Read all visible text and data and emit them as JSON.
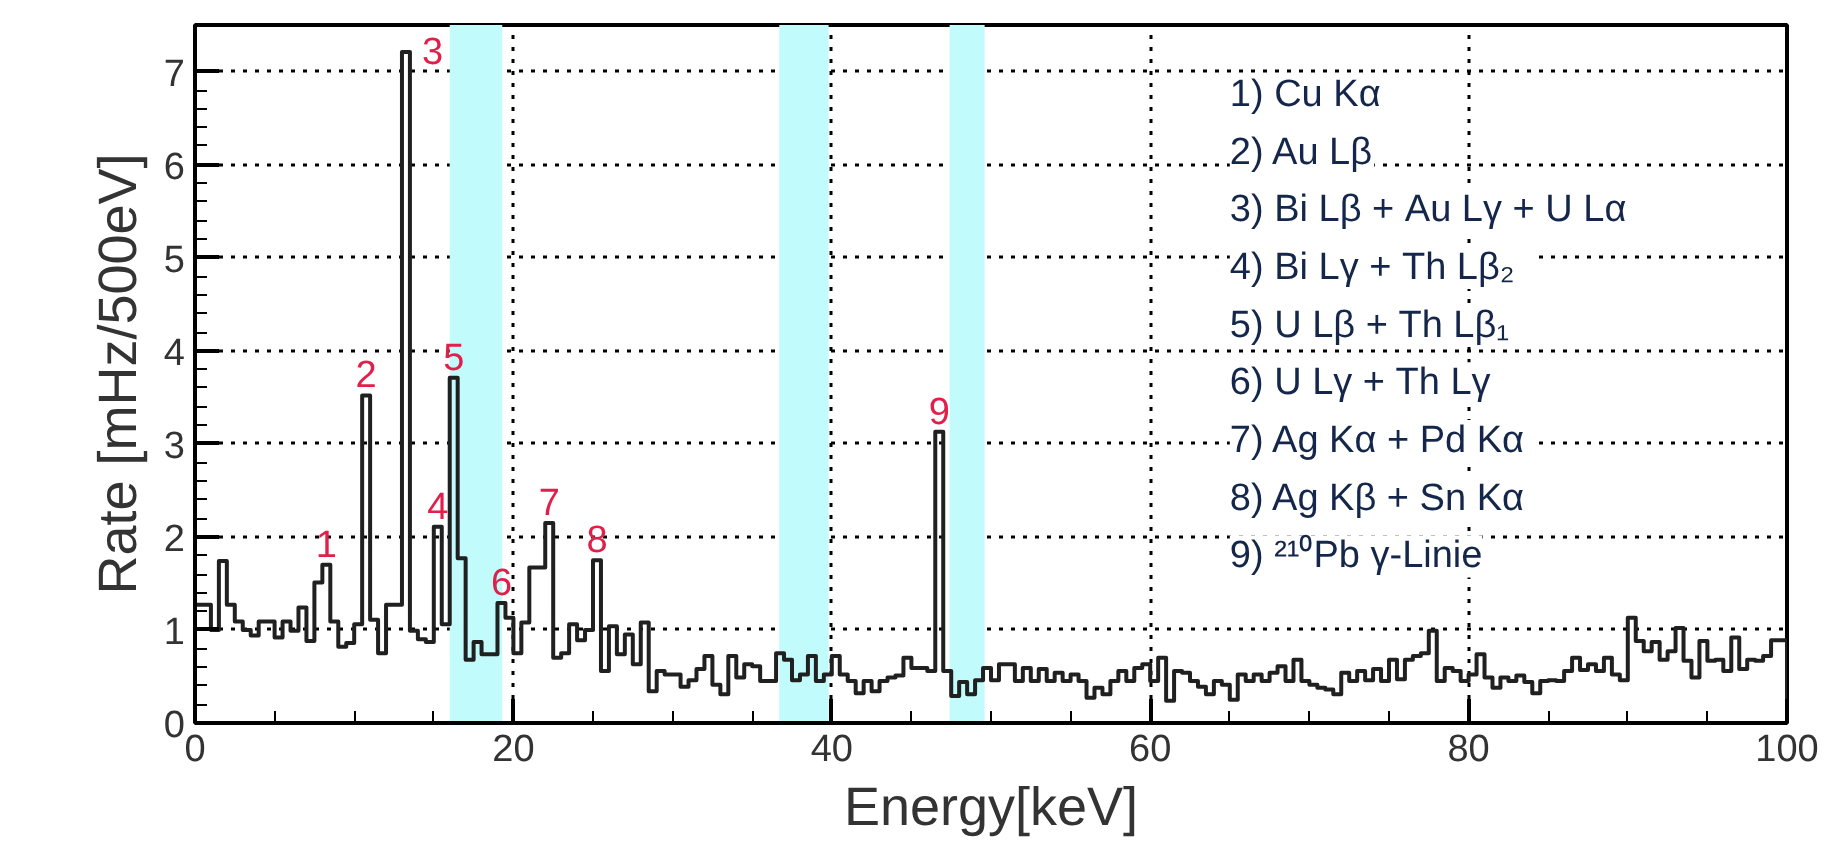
{
  "chart_data": {
    "type": "histogram",
    "xlabel": "Energy[keV]",
    "ylabel": "Rate [mHz/500eV]",
    "bins": [
      0,
      0.5,
      1,
      1.5,
      2,
      2.5,
      3,
      3.5,
      4,
      4.5,
      5,
      5.5,
      6,
      6.5,
      7,
      7.5,
      8,
      8.5,
      9,
      9.5,
      10,
      10.5,
      11,
      11.5,
      12,
      12.5,
      13,
      13.5,
      14,
      14.5,
      15,
      15.5,
      16,
      16.5,
      17,
      17.5,
      18,
      18.5,
      19,
      19.5,
      20,
      20.5,
      21,
      21.5,
      22,
      22.5,
      23,
      23.5,
      24,
      24.5,
      25,
      25.5,
      26,
      26.5,
      27,
      27.5,
      28,
      28.5,
      29,
      29.5,
      30,
      30.5,
      31,
      31.5,
      32,
      32.5,
      33,
      33.5,
      34,
      34.5,
      35,
      35.5,
      36,
      36.5,
      37,
      37.5,
      38,
      38.5,
      39,
      39.5,
      40,
      40.5,
      41,
      41.5,
      42,
      42.5,
      43,
      43.5,
      44,
      44.5,
      45,
      45.5,
      46,
      46.5,
      47,
      47.5,
      48,
      48.5,
      49,
      49.5,
      50,
      50.5,
      51,
      51.5,
      52,
      52.5,
      53,
      53.5,
      54,
      54.5,
      55,
      55.5,
      56,
      56.5,
      57,
      57.5,
      58,
      58.5,
      59,
      59.5,
      60,
      60.5,
      61,
      61.5,
      62,
      62.5,
      63,
      63.5,
      64,
      64.5,
      65,
      65.5,
      66,
      66.5,
      67,
      67.5,
      68,
      68.5,
      69,
      69.5,
      70,
      70.5,
      71,
      71.5,
      72,
      72.5,
      73,
      73.5,
      74,
      74.5,
      75,
      75.5,
      76,
      76.5,
      77,
      77.5,
      78,
      78.5,
      79,
      79.5,
      80,
      80.5,
      81,
      81.5,
      82,
      82.5,
      83,
      83.5,
      84,
      84.5,
      85,
      85.5,
      86,
      86.5,
      87,
      87.5,
      88,
      88.5,
      89,
      89.5,
      90,
      90.5,
      91,
      91.5,
      92,
      92.5,
      93,
      93.5,
      94,
      94.5,
      95,
      95.5,
      96,
      96.5,
      97,
      97.5,
      98,
      98.5,
      99,
      99.5,
      100
    ],
    "values": [
      1.27,
      1.27,
      1.0,
      1.74,
      1.27,
      1.09,
      1.0,
      0.94,
      1.09,
      1.09,
      0.92,
      1.09,
      0.99,
      1.24,
      0.88,
      1.51,
      1.7,
      1.09,
      0.82,
      0.86,
      1.06,
      3.52,
      1.11,
      0.75,
      1.27,
      1.27,
      7.21,
      0.99,
      0.9,
      0.87,
      2.11,
      1.06,
      3.71,
      1.77,
      0.68,
      0.87,
      0.74,
      0.74,
      1.29,
      1.13,
      0.75,
      1.08,
      1.67,
      1.67,
      2.15,
      0.7,
      0.75,
      1.06,
      0.89,
      1.0,
      1.75,
      0.56,
      1.04,
      0.74,
      0.95,
      0.63,
      1.08,
      0.34,
      0.56,
      0.52,
      0.52,
      0.39,
      0.46,
      0.58,
      0.72,
      0.41,
      0.31,
      0.72,
      0.49,
      0.63,
      0.61,
      0.45,
      0.45,
      0.75,
      0.68,
      0.46,
      0.52,
      0.72,
      0.45,
      0.52,
      0.72,
      0.52,
      0.45,
      0.32,
      0.45,
      0.34,
      0.45,
      0.49,
      0.51,
      0.7,
      0.59,
      0.59,
      0.56,
      3.13,
      0.56,
      0.29,
      0.44,
      0.31,
      0.46,
      0.59,
      0.46,
      0.63,
      0.63,
      0.45,
      0.59,
      0.45,
      0.58,
      0.45,
      0.54,
      0.45,
      0.52,
      0.45,
      0.27,
      0.38,
      0.31,
      0.45,
      0.56,
      0.45,
      0.59,
      0.63,
      0.45,
      0.7,
      0.24,
      0.56,
      0.54,
      0.45,
      0.39,
      0.31,
      0.45,
      0.41,
      0.25,
      0.52,
      0.45,
      0.52,
      0.45,
      0.54,
      0.61,
      0.45,
      0.68,
      0.45,
      0.41,
      0.38,
      0.36,
      0.31,
      0.54,
      0.45,
      0.56,
      0.46,
      0.58,
      0.45,
      0.68,
      0.47,
      0.68,
      0.72,
      0.75,
      0.99,
      0.45,
      0.59,
      0.56,
      0.45,
      0.52,
      0.74,
      0.49,
      0.38,
      0.49,
      0.45,
      0.51,
      0.44,
      0.32,
      0.45,
      0.46,
      0.45,
      0.56,
      0.7,
      0.57,
      0.63,
      0.56,
      0.7,
      0.52,
      0.46,
      1.13,
      0.88,
      0.77,
      0.87,
      0.68,
      0.77,
      1.02,
      0.67,
      0.49,
      0.88,
      0.67,
      0.68,
      0.56,
      0.92,
      0.58,
      0.68,
      0.67,
      0.72,
      0.89,
      0.89
    ],
    "color": "#202020",
    "xlim": [
      0,
      100
    ],
    "ylim": [
      0,
      7.5
    ],
    "xticks": [
      0,
      20,
      40,
      60,
      80,
      100
    ],
    "yticks": [
      0,
      1,
      2,
      3,
      4,
      5,
      6,
      7
    ],
    "grid": true,
    "line_style": "solid",
    "bands": [
      {
        "axis": "x",
        "from": 16.0,
        "to": 19.3,
        "label": null,
        "color": "#c2fbfb"
      },
      {
        "axis": "x",
        "from": 36.7,
        "to": 39.8,
        "label": null,
        "color": "#c2fbfb"
      },
      {
        "axis": "x",
        "from": 47.4,
        "to": 49.6,
        "label": null,
        "color": "#c2fbfb"
      }
    ],
    "annotations": [
      {
        "text": "1",
        "x": 8.25,
        "y": 1.7
      },
      {
        "text": "2",
        "x": 10.75,
        "y": 3.52
      },
      {
        "text": "3",
        "x": 13.25,
        "y": 7.21
      },
      {
        "text": "4",
        "x": 15.25,
        "y": 2.11
      },
      {
        "text": "5",
        "x": 16.25,
        "y": 3.71
      },
      {
        "text": "6",
        "x": 19.25,
        "y": 1.29
      },
      {
        "text": "7",
        "x": 22.25,
        "y": 2.15
      },
      {
        "text": "8",
        "x": 25.25,
        "y": 1.75
      },
      {
        "text": "9",
        "x": 46.75,
        "y": 3.13
      },
      "1) Cu Kα",
      "2) Au Lβ",
      "3) Bi Lβ +  Au Lγ  +  U Lα",
      "4) Bi Lγ  +  Th Lβ₂",
      "5) U Lβ +  Th Lβ₁",
      "6) U Lγ +  Th Lγ",
      "7) Ag Kα +  Pd Kα",
      "8) Ag Kβ +  Sn Kα",
      "9) ²¹⁰Pb γ-Linie"
    ]
  }
}
